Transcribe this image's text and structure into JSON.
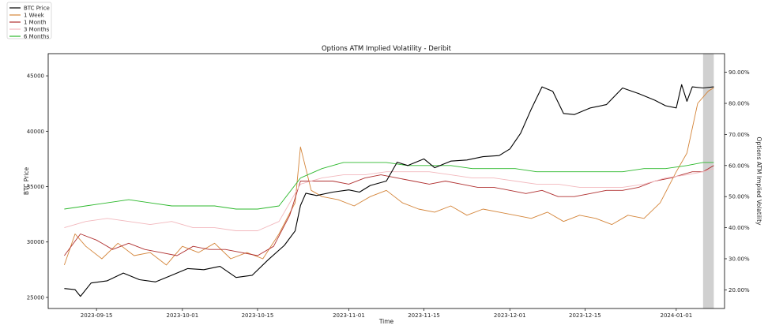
{
  "chart_data": {
    "type": "line",
    "title": "Options ATM Implied Volatility - Deribit",
    "xlabel": "Time",
    "ylabel": "BTC Price",
    "y2label": "Options ATM Implied Volatility",
    "x_ticks": [
      "2023-09-15",
      "2023-10-01",
      "2023-10-15",
      "2023-11-01",
      "2023-11-15",
      "2023-12-01",
      "2023-12-15",
      "2024-01-01"
    ],
    "xlim": [
      "2023-09-06",
      "2024-01-10"
    ],
    "ylim": [
      24000,
      47000
    ],
    "y_ticks": [
      25000,
      30000,
      35000,
      40000,
      45000
    ],
    "y_tick_labels": [
      "25000",
      "30000",
      "35000",
      "40000",
      "45000"
    ],
    "y2lim": [
      14,
      96
    ],
    "y2_ticks": [
      20,
      30,
      40,
      50,
      60,
      70,
      80,
      90
    ],
    "y2_tick_labels": [
      "20.00%",
      "30.00%",
      "40.00%",
      "50.00%",
      "60.00%",
      "70.00%",
      "80.00%",
      "90.00%"
    ],
    "legend_position": "top-left",
    "highlight_span": [
      "2024-01-06",
      "2024-01-08"
    ],
    "highlight_color": "#d0d0d0",
    "grid": false,
    "series": [
      {
        "name": "BTC Price",
        "axis": "left",
        "color": "#000000",
        "x": [
          "2023-09-09",
          "2023-09-11",
          "2023-09-12",
          "2023-09-14",
          "2023-09-17",
          "2023-09-20",
          "2023-09-23",
          "2023-09-26",
          "2023-09-29",
          "2023-10-02",
          "2023-10-05",
          "2023-10-08",
          "2023-10-11",
          "2023-10-14",
          "2023-10-17",
          "2023-10-20",
          "2023-10-22",
          "2023-10-23",
          "2023-10-24",
          "2023-10-26",
          "2023-10-29",
          "2023-11-01",
          "2023-11-03",
          "2023-11-05",
          "2023-11-08",
          "2023-11-10",
          "2023-11-12",
          "2023-11-15",
          "2023-11-17",
          "2023-11-20",
          "2023-11-23",
          "2023-11-26",
          "2023-11-29",
          "2023-12-01",
          "2023-12-03",
          "2023-12-05",
          "2023-12-07",
          "2023-12-09",
          "2023-12-11",
          "2023-12-13",
          "2023-12-16",
          "2023-12-19",
          "2023-12-22",
          "2023-12-25",
          "2023-12-28",
          "2023-12-30",
          "2024-01-01",
          "2024-01-02",
          "2024-01-03",
          "2024-01-04",
          "2024-01-06",
          "2024-01-08"
        ],
        "values": [
          25800,
          25700,
          25100,
          26300,
          26500,
          27200,
          26600,
          26400,
          27000,
          27600,
          27500,
          27800,
          26800,
          27000,
          28400,
          29700,
          31000,
          33300,
          34400,
          34200,
          34500,
          34700,
          34500,
          35100,
          35500,
          37200,
          36900,
          37500,
          36700,
          37300,
          37400,
          37700,
          37800,
          38400,
          39800,
          42000,
          44000,
          43600,
          41600,
          41500,
          42100,
          42400,
          43900,
          43400,
          42800,
          42300,
          42100,
          44200,
          42700,
          44000,
          43900,
          44000
        ]
      },
      {
        "name": "1 Week",
        "axis": "right",
        "color": "#d4853a",
        "x": [
          "2023-09-09",
          "2023-09-11",
          "2023-09-13",
          "2023-09-16",
          "2023-09-19",
          "2023-09-22",
          "2023-09-25",
          "2023-09-28",
          "2023-10-01",
          "2023-10-04",
          "2023-10-07",
          "2023-10-10",
          "2023-10-13",
          "2023-10-16",
          "2023-10-19",
          "2023-10-22",
          "2023-10-23",
          "2023-10-25",
          "2023-10-27",
          "2023-10-30",
          "2023-11-02",
          "2023-11-05",
          "2023-11-08",
          "2023-11-11",
          "2023-11-14",
          "2023-11-17",
          "2023-11-20",
          "2023-11-23",
          "2023-11-26",
          "2023-11-29",
          "2023-12-02",
          "2023-12-05",
          "2023-12-08",
          "2023-12-11",
          "2023-12-14",
          "2023-12-17",
          "2023-12-20",
          "2023-12-23",
          "2023-12-26",
          "2023-12-29",
          "2024-01-01",
          "2024-01-03",
          "2024-01-05",
          "2024-01-07",
          "2024-01-08"
        ],
        "values": [
          28,
          38,
          34,
          30,
          35,
          31,
          32,
          28,
          34,
          32,
          35,
          30,
          32,
          30,
          38,
          48,
          66,
          52,
          50,
          49,
          47,
          50,
          52,
          48,
          46,
          45,
          47,
          44,
          46,
          45,
          44,
          43,
          45,
          42,
          44,
          43,
          41,
          44,
          43,
          48,
          58,
          64,
          80,
          84,
          85
        ]
      },
      {
        "name": "1 Month",
        "axis": "right",
        "color": "#b03030",
        "x": [
          "2023-09-09",
          "2023-09-12",
          "2023-09-15",
          "2023-09-18",
          "2023-09-21",
          "2023-09-24",
          "2023-09-27",
          "2023-09-30",
          "2023-10-03",
          "2023-10-06",
          "2023-10-09",
          "2023-10-12",
          "2023-10-15",
          "2023-10-18",
          "2023-10-21",
          "2023-10-23",
          "2023-10-26",
          "2023-10-29",
          "2023-11-01",
          "2023-11-04",
          "2023-11-07",
          "2023-11-10",
          "2023-11-13",
          "2023-11-16",
          "2023-11-19",
          "2023-11-22",
          "2023-11-25",
          "2023-11-28",
          "2023-12-01",
          "2023-12-04",
          "2023-12-07",
          "2023-12-10",
          "2023-12-13",
          "2023-12-16",
          "2023-12-19",
          "2023-12-22",
          "2023-12-25",
          "2023-12-28",
          "2023-12-31",
          "2024-01-02",
          "2024-01-04",
          "2024-01-06",
          "2024-01-08"
        ],
        "values": [
          31,
          38,
          36,
          33,
          35,
          33,
          32,
          31,
          34,
          33,
          33,
          32,
          31,
          34,
          44,
          55,
          55,
          55,
          54,
          56,
          57,
          56,
          55,
          54,
          55,
          54,
          53,
          53,
          52,
          51,
          52,
          50,
          50,
          51,
          52,
          52,
          53,
          55,
          56,
          57,
          58,
          58,
          60
        ]
      },
      {
        "name": "3 Months",
        "axis": "right",
        "color": "#f2b8bd",
        "x": [
          "2023-09-09",
          "2023-09-13",
          "2023-09-17",
          "2023-09-21",
          "2023-09-25",
          "2023-09-29",
          "2023-10-03",
          "2023-10-07",
          "2023-10-11",
          "2023-10-15",
          "2023-10-19",
          "2023-10-23",
          "2023-10-27",
          "2023-10-31",
          "2023-11-04",
          "2023-11-08",
          "2023-11-12",
          "2023-11-16",
          "2023-11-20",
          "2023-11-24",
          "2023-11-28",
          "2023-12-02",
          "2023-12-06",
          "2023-12-10",
          "2023-12-14",
          "2023-12-18",
          "2023-12-22",
          "2023-12-26",
          "2023-12-30",
          "2024-01-03",
          "2024-01-06",
          "2024-01-08"
        ],
        "values": [
          40,
          42,
          43,
          42,
          41,
          42,
          40,
          40,
          39,
          39,
          42,
          54,
          56,
          57,
          57,
          58,
          58,
          58,
          57,
          56,
          56,
          55,
          54,
          54,
          53,
          53,
          53,
          54,
          56,
          57,
          58,
          59
        ]
      },
      {
        "name": "6 Months",
        "axis": "right",
        "color": "#2cb82c",
        "x": [
          "2023-09-09",
          "2023-09-13",
          "2023-09-17",
          "2023-09-21",
          "2023-09-25",
          "2023-09-29",
          "2023-10-03",
          "2023-10-07",
          "2023-10-11",
          "2023-10-15",
          "2023-10-19",
          "2023-10-23",
          "2023-10-27",
          "2023-10-31",
          "2023-11-04",
          "2023-11-08",
          "2023-11-12",
          "2023-11-16",
          "2023-11-20",
          "2023-11-24",
          "2023-11-28",
          "2023-12-02",
          "2023-12-06",
          "2023-12-10",
          "2023-12-14",
          "2023-12-18",
          "2023-12-22",
          "2023-12-26",
          "2023-12-30",
          "2024-01-03",
          "2024-01-06",
          "2024-01-08"
        ],
        "values": [
          46,
          47,
          48,
          49,
          48,
          47,
          47,
          47,
          46,
          46,
          47,
          56,
          59,
          61,
          61,
          61,
          60,
          60,
          60,
          59,
          59,
          59,
          58,
          58,
          58,
          58,
          58,
          59,
          59,
          60,
          61,
          61
        ]
      }
    ]
  }
}
